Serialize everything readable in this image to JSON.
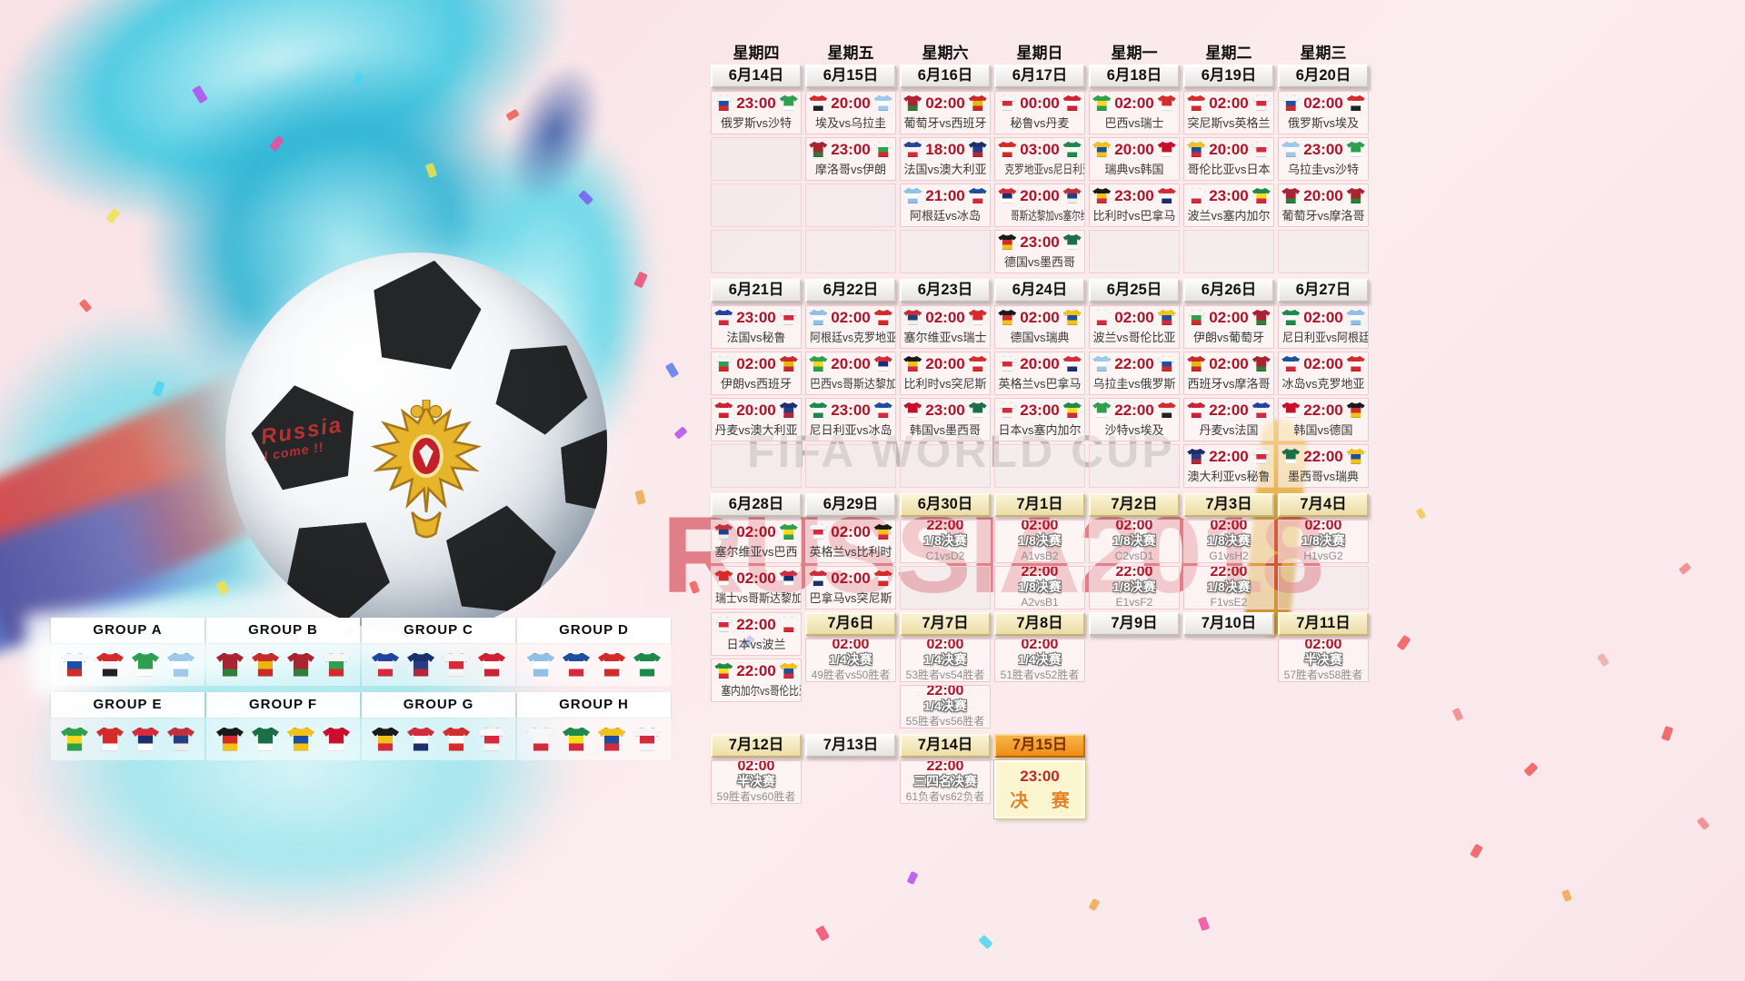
{
  "watermark": {
    "line1": "FIFA WORLD CUP",
    "line2": "RUSSIA2018"
  },
  "ball_text": {
    "line1": "Russia",
    "line2": "I come !!"
  },
  "final_label": "决 赛",
  "weekdays": [
    "星期四",
    "星期五",
    "星期六",
    "星期日",
    "星期一",
    "星期二",
    "星期三"
  ],
  "colors": {
    "time_red": "#b01226",
    "header_orange": "#ee8e12",
    "watermark_red": "#c71c2c",
    "stage_white": "#ffffff"
  },
  "team_colors": {
    "俄罗斯": [
      "#f5f8fa",
      "#1f4fa3",
      "#d22b2b"
    ],
    "沙特": [
      "#2f9e4f",
      "#2f9e4f",
      "#ffffff"
    ],
    "埃及": [
      "#d42a2a",
      "#f5f5f5",
      "#222222"
    ],
    "乌拉圭": [
      "#9ec9ea",
      "#ffffff",
      "#9ec9ea"
    ],
    "葡萄牙": [
      "#a92333",
      "#a92333",
      "#2f7d3a"
    ],
    "西班牙": [
      "#c92a2a",
      "#e8b80f",
      "#c92a2a"
    ],
    "秘鲁": [
      "#f5f5f5",
      "#d42a3c",
      "#f5f5f5"
    ],
    "丹麦": [
      "#cf2034",
      "#ffffff",
      "#cf2034"
    ],
    "巴西": [
      "#2fa14b",
      "#ffd61f",
      "#2fa14b"
    ],
    "瑞士": [
      "#d42b2b",
      "#d42b2b",
      "#ffffff"
    ],
    "突尼斯": [
      "#d42b2b",
      "#ffffff",
      "#d42b2b"
    ],
    "英格兰": [
      "#f7f7f7",
      "#d42a3c",
      "#f7f7f7"
    ],
    "摩洛哥": [
      "#a8242e",
      "#a8242e",
      "#2f7d3a"
    ],
    "伊朗": [
      "#f5f5f5",
      "#2f9e4f",
      "#d42a2a"
    ],
    "法国": [
      "#2244a0",
      "#f5f5f5",
      "#d42a3c"
    ],
    "澳大利亚": [
      "#1b2f6e",
      "#273c85",
      "#b32638"
    ],
    "阿根廷": [
      "#8fc1e8",
      "#ffffff",
      "#8fc1e8"
    ],
    "冰岛": [
      "#1d4f9e",
      "#ffffff",
      "#d42a3c"
    ],
    "克罗地亚": [
      "#d42a2a",
      "#ffffff",
      "#d42a2a"
    ],
    "尼日利亚": [
      "#1d8a4a",
      "#ffffff",
      "#1d8a4a"
    ],
    "哥斯达黎加": [
      "#d42a3c",
      "#1b2f6e",
      "#ffffff"
    ],
    "塞尔维亚": [
      "#c0313c",
      "#23407e",
      "#eeeeee"
    ],
    "德国": [
      "#1a1a1a",
      "#d42a2a",
      "#f2c11a"
    ],
    "墨西哥": [
      "#1d6e47",
      "#1d6e47",
      "#ffffff"
    ],
    "瑞典": [
      "#f2c11a",
      "#1d4f9e",
      "#f2c11a"
    ],
    "韩国": [
      "#c8102e",
      "#c8102e",
      "#ffffff"
    ],
    "比利时": [
      "#1a1a1a",
      "#f2c11a",
      "#d42a3c"
    ],
    "巴拿马": [
      "#d42a3c",
      "#ffffff",
      "#1b2f6e"
    ],
    "波兰": [
      "#f7f7f7",
      "#f7f7f7",
      "#d42a3c"
    ],
    "塞内加尔": [
      "#1d8a4a",
      "#f2e11a",
      "#d42a3c"
    ],
    "哥伦比亚": [
      "#f2c11a",
      "#1d4f9e",
      "#d42a3c"
    ],
    "日本": [
      "#f5f5f5",
      "#d42a3c",
      "#f5f5f5"
    ]
  },
  "groups": [
    {
      "label": "GROUP A",
      "teams": [
        "俄罗斯",
        "埃及",
        "沙特",
        "乌拉圭"
      ]
    },
    {
      "label": "GROUP B",
      "teams": [
        "葡萄牙",
        "西班牙",
        "摩洛哥",
        "伊朗"
      ]
    },
    {
      "label": "GROUP C",
      "teams": [
        "法国",
        "澳大利亚",
        "秘鲁",
        "丹麦"
      ]
    },
    {
      "label": "GROUP D",
      "teams": [
        "阿根廷",
        "冰岛",
        "克罗地亚",
        "尼日利亚"
      ]
    },
    {
      "label": "GROUP E",
      "teams": [
        "巴西",
        "瑞士",
        "哥斯达黎加",
        "塞尔维亚"
      ]
    },
    {
      "label": "GROUP F",
      "teams": [
        "德国",
        "墨西哥",
        "瑞典",
        "韩国"
      ]
    },
    {
      "label": "GROUP G",
      "teams": [
        "比利时",
        "巴拿马",
        "突尼斯",
        "英格兰"
      ]
    },
    {
      "label": "GROUP H",
      "teams": [
        "波兰",
        "塞内加尔",
        "哥伦比亚",
        "日本"
      ]
    }
  ],
  "bands": [
    {
      "headers": [
        {
          "d": "6月14日",
          "s": "gray"
        },
        {
          "d": "6月15日",
          "s": "gray"
        },
        {
          "d": "6月16日",
          "s": "gray"
        },
        {
          "d": "6月17日",
          "s": "gray"
        },
        {
          "d": "6月18日",
          "s": "gray"
        },
        {
          "d": "6月19日",
          "s": "gray"
        },
        {
          "d": "6月20日",
          "s": "gray"
        }
      ],
      "cols": [
        [
          {
            "t": "m",
            "time": "23:00",
            "home": "俄罗斯",
            "away": "沙特"
          },
          {
            "t": "e"
          },
          {
            "t": "e"
          },
          {
            "t": "e"
          }
        ],
        [
          {
            "t": "m",
            "time": "20:00",
            "home": "埃及",
            "away": "乌拉圭"
          },
          {
            "t": "m",
            "time": "23:00",
            "home": "摩洛哥",
            "away": "伊朗"
          },
          {
            "t": "e"
          },
          {
            "t": "e"
          }
        ],
        [
          {
            "t": "m",
            "time": "02:00",
            "home": "葡萄牙",
            "away": "西班牙"
          },
          {
            "t": "m",
            "time": "18:00",
            "home": "法国",
            "away": "澳大利亚"
          },
          {
            "t": "m",
            "time": "21:00",
            "home": "阿根廷",
            "away": "冰岛"
          },
          {
            "t": "e"
          }
        ],
        [
          {
            "t": "m",
            "time": "00:00",
            "home": "秘鲁",
            "away": "丹麦"
          },
          {
            "t": "m",
            "time": "03:00",
            "home": "克罗地亚",
            "away": "尼日利亚"
          },
          {
            "t": "m",
            "time": "20:00",
            "home": "哥斯达黎加",
            "away": "塞尔维亚"
          },
          {
            "t": "m",
            "time": "23:00",
            "home": "德国",
            "away": "墨西哥"
          }
        ],
        [
          {
            "t": "m",
            "time": "02:00",
            "home": "巴西",
            "away": "瑞士"
          },
          {
            "t": "m",
            "time": "20:00",
            "home": "瑞典",
            "away": "韩国"
          },
          {
            "t": "m",
            "time": "23:00",
            "home": "比利时",
            "away": "巴拿马"
          },
          {
            "t": "e"
          }
        ],
        [
          {
            "t": "m",
            "time": "02:00",
            "home": "突尼斯",
            "away": "英格兰"
          },
          {
            "t": "m",
            "time": "20:00",
            "home": "哥伦比亚",
            "away": "日本"
          },
          {
            "t": "m",
            "time": "23:00",
            "home": "波兰",
            "away": "塞内加尔"
          },
          {
            "t": "e"
          }
        ],
        [
          {
            "t": "m",
            "time": "02:00",
            "home": "俄罗斯",
            "away": "埃及"
          },
          {
            "t": "m",
            "time": "23:00",
            "home": "乌拉圭",
            "away": "沙特"
          },
          {
            "t": "m",
            "time": "20:00",
            "home": "葡萄牙",
            "away": "摩洛哥"
          },
          {
            "t": "e"
          }
        ]
      ]
    },
    {
      "headers": [
        {
          "d": "6月21日",
          "s": "gray"
        },
        {
          "d": "6月22日",
          "s": "gray"
        },
        {
          "d": "6月23日",
          "s": "gray"
        },
        {
          "d": "6月24日",
          "s": "gray"
        },
        {
          "d": "6月25日",
          "s": "gray"
        },
        {
          "d": "6月26日",
          "s": "gray"
        },
        {
          "d": "6月27日",
          "s": "gray"
        }
      ],
      "cols": [
        [
          {
            "t": "m",
            "time": "23:00",
            "home": "法国",
            "away": "秘鲁"
          },
          {
            "t": "m",
            "time": "02:00",
            "home": "伊朗",
            "away": "西班牙"
          },
          {
            "t": "m",
            "time": "20:00",
            "home": "丹麦",
            "away": "澳大利亚"
          },
          {
            "t": "e"
          }
        ],
        [
          {
            "t": "m",
            "time": "02:00",
            "home": "阿根廷",
            "away": "克罗地亚"
          },
          {
            "t": "m",
            "time": "20:00",
            "home": "巴西",
            "away": "哥斯达黎加"
          },
          {
            "t": "m",
            "time": "23:00",
            "home": "尼日利亚",
            "away": "冰岛"
          },
          {
            "t": "e"
          }
        ],
        [
          {
            "t": "m",
            "time": "02:00",
            "home": "塞尔维亚",
            "away": "瑞士"
          },
          {
            "t": "m",
            "time": "20:00",
            "home": "比利时",
            "away": "突尼斯"
          },
          {
            "t": "m",
            "time": "23:00",
            "home": "韩国",
            "away": "墨西哥"
          },
          {
            "t": "e"
          }
        ],
        [
          {
            "t": "m",
            "time": "02:00",
            "home": "德国",
            "away": "瑞典"
          },
          {
            "t": "m",
            "time": "20:00",
            "home": "英格兰",
            "away": "巴拿马"
          },
          {
            "t": "m",
            "time": "23:00",
            "home": "日本",
            "away": "塞内加尔"
          },
          {
            "t": "e"
          }
        ],
        [
          {
            "t": "m",
            "time": "02:00",
            "home": "波兰",
            "away": "哥伦比亚"
          },
          {
            "t": "m",
            "time": "22:00",
            "home": "乌拉圭",
            "away": "俄罗斯"
          },
          {
            "t": "m",
            "time": "22:00",
            "home": "沙特",
            "away": "埃及"
          },
          {
            "t": "e"
          }
        ],
        [
          {
            "t": "m",
            "time": "02:00",
            "home": "伊朗",
            "away": "葡萄牙"
          },
          {
            "t": "m",
            "time": "02:00",
            "home": "西班牙",
            "away": "摩洛哥"
          },
          {
            "t": "m",
            "time": "22:00",
            "home": "丹麦",
            "away": "法国"
          },
          {
            "t": "m",
            "time": "22:00",
            "home": "澳大利亚",
            "away": "秘鲁"
          }
        ],
        [
          {
            "t": "m",
            "time": "02:00",
            "home": "尼日利亚",
            "away": "阿根廷"
          },
          {
            "t": "m",
            "time": "02:00",
            "home": "冰岛",
            "away": "克罗地亚"
          },
          {
            "t": "m",
            "time": "22:00",
            "home": "韩国",
            "away": "德国"
          },
          {
            "t": "m",
            "time": "22:00",
            "home": "墨西哥",
            "away": "瑞典"
          }
        ]
      ]
    },
    {
      "headers": [
        {
          "d": "6月28日",
          "s": "gray"
        },
        {
          "d": "6月29日",
          "s": "gray"
        },
        {
          "d": "6月30日",
          "s": "yellow"
        },
        {
          "d": "7月1日",
          "s": "yellow"
        },
        {
          "d": "7月2日",
          "s": "yellow"
        },
        {
          "d": "7月3日",
          "s": "yellow"
        },
        {
          "d": "7月4日",
          "s": "yellow"
        }
      ],
      "cols": [
        [
          {
            "t": "m",
            "time": "02:00",
            "home": "塞尔维亚",
            "away": "巴西"
          },
          {
            "t": "m",
            "time": "02:00",
            "home": "瑞士",
            "away": "哥斯达黎加"
          }
        ],
        [
          {
            "t": "m",
            "time": "02:00",
            "home": "英格兰",
            "away": "比利时"
          },
          {
            "t": "m",
            "time": "02:00",
            "home": "巴拿马",
            "away": "突尼斯"
          }
        ],
        [
          {
            "t": "k",
            "time": "22:00",
            "stage": "1/8决赛",
            "vs": "C1vsD2"
          },
          {
            "t": "e"
          }
        ],
        [
          {
            "t": "k",
            "time": "02:00",
            "stage": "1/8决赛",
            "vs": "A1vsB2"
          },
          {
            "t": "k",
            "time": "22:00",
            "stage": "1/8决赛",
            "vs": "A2vsB1"
          }
        ],
        [
          {
            "t": "k",
            "time": "02:00",
            "stage": "1/8决赛",
            "vs": "C2vsD1"
          },
          {
            "t": "k",
            "time": "22:00",
            "stage": "1/8决赛",
            "vs": "E1vsF2"
          }
        ],
        [
          {
            "t": "k",
            "time": "02:00",
            "stage": "1/8决赛",
            "vs": "G1vsH2"
          },
          {
            "t": "k",
            "time": "22:00",
            "stage": "1/8决赛",
            "vs": "F1vsE2"
          }
        ],
        [
          {
            "t": "k",
            "time": "02:00",
            "stage": "1/8决赛",
            "vs": "H1vsG2"
          },
          {
            "t": "e"
          }
        ]
      ]
    },
    {
      "headers": [
        null,
        {
          "d": "7月6日",
          "s": "yellow"
        },
        {
          "d": "7月7日",
          "s": "yellow"
        },
        {
          "d": "7月8日",
          "s": "yellow"
        },
        {
          "d": "7月9日",
          "s": "gray"
        },
        {
          "d": "7月10日",
          "s": "gray"
        },
        {
          "d": "7月11日",
          "s": "yellow"
        }
      ],
      "cols": [
        [
          {
            "t": "m",
            "time": "22:00",
            "home": "日本",
            "away": "波兰"
          },
          {
            "t": "m",
            "time": "22:00",
            "home": "塞内加尔",
            "away": "哥伦比亚"
          }
        ],
        [
          {
            "t": "k",
            "time": "02:00",
            "stage": "1/4决赛",
            "vs": "49胜者vs50胜者"
          }
        ],
        [
          {
            "t": "k",
            "time": "02:00",
            "stage": "1/4决赛",
            "vs": "53胜者vs54胜者"
          },
          {
            "t": "k",
            "time": "22:00",
            "stage": "1/4决赛",
            "vs": "55胜者vs56胜者"
          }
        ],
        [
          {
            "t": "k",
            "time": "02:00",
            "stage": "1/4决赛",
            "vs": "51胜者vs52胜者"
          }
        ],
        [],
        [],
        [
          {
            "t": "k",
            "time": "02:00",
            "stage": "半决赛",
            "vs": "57胜者vs58胜者"
          }
        ]
      ]
    },
    {
      "headers": [
        {
          "d": "7月12日",
          "s": "yellow"
        },
        {
          "d": "7月13日",
          "s": "gray"
        },
        {
          "d": "7月14日",
          "s": "yellow"
        },
        {
          "d": "7月15日",
          "s": "orange"
        },
        null,
        null,
        null
      ],
      "cols": [
        [
          {
            "t": "k",
            "time": "02:00",
            "stage": "半决赛",
            "vs": "59胜者vs60胜者"
          }
        ],
        [],
        [
          {
            "t": "k",
            "time": "22:00",
            "stage": "三四名决赛",
            "vs": "61负者vs62负者"
          }
        ],
        [
          {
            "t": "f",
            "time": "23:00"
          }
        ],
        [],
        [],
        []
      ]
    }
  ]
}
